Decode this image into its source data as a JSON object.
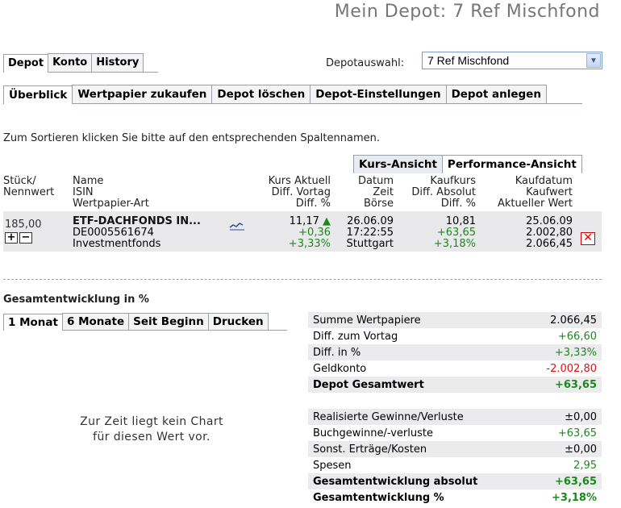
{
  "page_title": "Mein Depot: 7 Ref Mischfond",
  "main_tabs": [
    {
      "label": "Depot",
      "active": true
    },
    {
      "label": "Konto",
      "active": false
    },
    {
      "label": "History",
      "active": false
    }
  ],
  "depot_select": {
    "label": "Depotauswahl:",
    "value": "7 Ref Mischfond"
  },
  "sub_tabs": [
    {
      "label": "Überblick",
      "active": true
    },
    {
      "label": "Wertpapier zukaufen",
      "active": false
    },
    {
      "label": "Depot löschen",
      "active": false
    },
    {
      "label": "Depot-Einstellungen",
      "active": false
    },
    {
      "label": "Depot anlegen",
      "active": false
    }
  ],
  "sort_hint": "Zum Sortieren klicken Sie bitte auf den entsprechenden Spaltennamen.",
  "view_tabs": [
    {
      "label": "Kurs-Ansicht",
      "active": false
    },
    {
      "label": "Performance-Ansicht",
      "active": true
    }
  ],
  "table_header": {
    "stueck": [
      "Stück/",
      "Nennwert"
    ],
    "name": [
      "Name",
      "ISIN",
      "Wertpapier-Art"
    ],
    "kurs": [
      "Kurs Aktuell",
      "Diff. Vortag",
      "Diff. %"
    ],
    "datum": [
      "Datum",
      "Zeit",
      "Börse"
    ],
    "kaufkurs": [
      "Kaufkurs",
      "Diff. Absolut",
      "Diff. %"
    ],
    "kaufdatum": [
      "Kaufdatum",
      "Kaufwert",
      "Aktueller Wert"
    ]
  },
  "position": {
    "stueck": "185,00",
    "name": "ETF-DACHFONDS IN...",
    "isin": "DE0005561674",
    "art": "Investmentfonds",
    "kurs": "11,17",
    "diff_vortag": "+0,36",
    "diff_pct": "+3,33%",
    "datum": "26.06.09",
    "zeit": "17:22:55",
    "boerse": "Stuttgart",
    "kaufkurs": "10,81",
    "diff_absolut": "+63,65",
    "kauf_diff_pct": "+3,18%",
    "kaufdatum": "25.06.09",
    "kaufwert": "2.002,80",
    "aktueller_wert": "2.066,45"
  },
  "section_title": "Gesamtentwicklung in %",
  "chart_tabs": [
    {
      "label": "1 Monat",
      "active": true
    },
    {
      "label": "6 Monate",
      "active": false
    },
    {
      "label": "Seit Beginn",
      "active": false
    },
    {
      "label": "Drucken",
      "active": false
    }
  ],
  "no_chart": [
    "Zur Zeit liegt kein Chart",
    "für diesen Wert vor."
  ],
  "summary1": [
    {
      "label": "Summe Wertpapiere",
      "value": "2.066,45",
      "color": "normal",
      "bold": false
    },
    {
      "label": "Diff. zum Vortag",
      "value": "+66,60",
      "color": "green",
      "bold": false
    },
    {
      "label": "Diff. in %",
      "value": "+3,33%",
      "color": "green",
      "bold": false
    },
    {
      "label": "Geldkonto",
      "value": "-2.002,80",
      "color": "red",
      "bold": false
    },
    {
      "label": "Depot Gesamtwert",
      "value": "+63,65",
      "color": "green",
      "bold": true
    }
  ],
  "summary2": [
    {
      "label": "Realisierte Gewinne/Verluste",
      "value": "±0,00",
      "color": "normal",
      "bold": false
    },
    {
      "label": "Buchgewinne/-verluste",
      "value": "+63,65",
      "color": "green",
      "bold": false
    },
    {
      "label": "Sonst. Erträge/Kosten",
      "value": "±0,00",
      "color": "normal",
      "bold": false
    },
    {
      "label": "Spesen",
      "value": "2,95",
      "color": "green",
      "bold": false
    },
    {
      "label": "Gesamtentwicklung absolut",
      "value": "+63,65",
      "color": "green",
      "bold": true
    },
    {
      "label": "Gesamtentwicklung %",
      "value": "+3,18%",
      "color": "green",
      "bold": true
    }
  ]
}
